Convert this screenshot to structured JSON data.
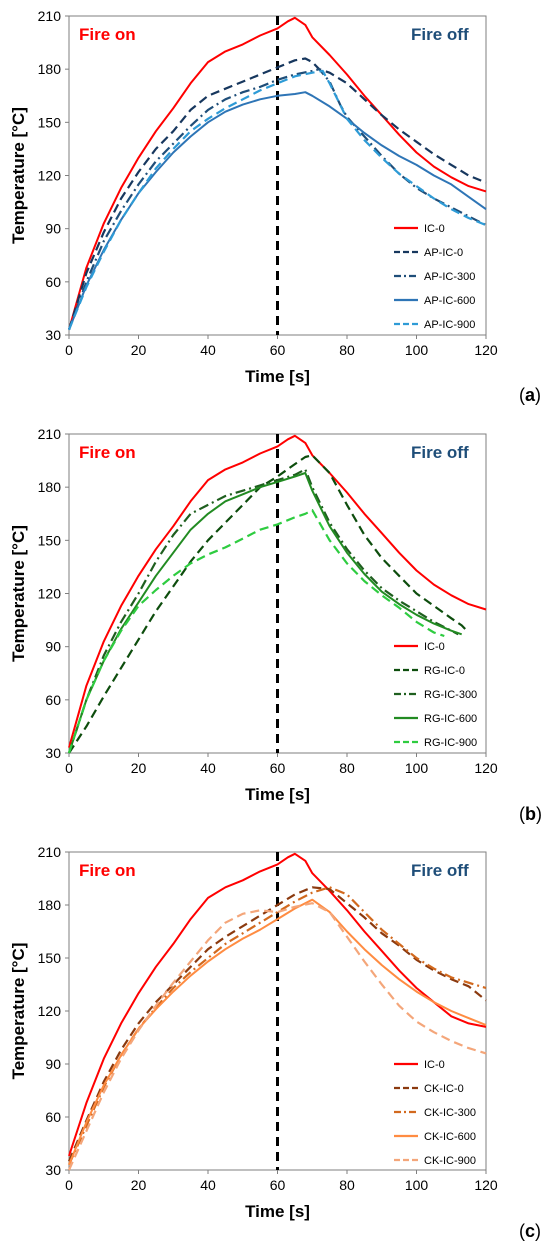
{
  "colors": {
    "ic0": "#ff0000",
    "fire_on": "#ff0000",
    "fire_off": "#1f4e79",
    "ap0": "#17375e",
    "ap300": "#1f4e79",
    "ap600": "#2e75b6",
    "ap900": "#2e9bd6",
    "rg0": "#0d4d0d",
    "rg300": "#1f5f1f",
    "rg600": "#228b22",
    "rg900": "#2ecc40",
    "ck0": "#8b3a0f",
    "ck300": "#d2691e",
    "ck600": "#ff8c42",
    "ck900": "#f4a67a"
  },
  "chart_data": [
    {
      "type": "line",
      "panel_label": "(a)",
      "xlabel": "Time [s]",
      "ylabel": "Temperature [°C]",
      "xlim": [
        0,
        120
      ],
      "ylim": [
        30,
        210
      ],
      "xticks": [
        0,
        20,
        40,
        60,
        80,
        100,
        120
      ],
      "yticks": [
        30,
        60,
        90,
        120,
        150,
        180,
        210
      ],
      "annotations": {
        "left": "Fire on",
        "right": "Fire off",
        "vline_x": 60
      },
      "legend_position": "lower-right",
      "series": [
        {
          "name": "IC-0",
          "color_key": "ic0",
          "dash": "solid",
          "x": [
            0,
            5,
            10,
            15,
            20,
            25,
            30,
            35,
            40,
            45,
            50,
            55,
            60,
            63,
            65,
            68,
            70,
            75,
            80,
            85,
            90,
            95,
            100,
            105,
            110,
            115,
            120
          ],
          "y": [
            33,
            68,
            93,
            113,
            130,
            145,
            158,
            172,
            184,
            190,
            194,
            199,
            203,
            207,
            209,
            205,
            198,
            188,
            177,
            165,
            154,
            143,
            133,
            125,
            119,
            114,
            111
          ]
        },
        {
          "name": "AP-IC-0",
          "color_key": "ap0",
          "dash": "dash",
          "x": [
            0,
            5,
            10,
            15,
            20,
            25,
            30,
            35,
            40,
            45,
            50,
            55,
            60,
            65,
            68,
            70,
            72,
            75,
            80,
            85,
            90,
            95,
            100,
            105,
            110,
            115,
            120
          ],
          "y": [
            33,
            65,
            88,
            107,
            122,
            135,
            145,
            157,
            165,
            169,
            173,
            177,
            181,
            185,
            186,
            184,
            180,
            178,
            172,
            163,
            154,
            146,
            139,
            132,
            126,
            120,
            116
          ]
        },
        {
          "name": "AP-IC-300",
          "color_key": "ap300",
          "dash": "dashdot",
          "x": [
            0,
            5,
            10,
            15,
            20,
            25,
            30,
            35,
            40,
            45,
            50,
            55,
            60,
            65,
            70,
            72,
            75,
            78,
            80,
            85,
            90,
            95,
            100,
            105,
            110,
            115,
            120
          ],
          "y": [
            33,
            60,
            83,
            100,
            115,
            128,
            138,
            148,
            157,
            163,
            167,
            170,
            174,
            177,
            179,
            180,
            173,
            160,
            153,
            142,
            131,
            121,
            113,
            107,
            102,
            97,
            92
          ]
        },
        {
          "name": "AP-IC-600",
          "color_key": "ap600",
          "dash": "solid",
          "x": [
            0,
            5,
            10,
            15,
            20,
            25,
            30,
            35,
            40,
            45,
            50,
            55,
            60,
            65,
            68,
            70,
            75,
            80,
            85,
            90,
            95,
            100,
            105,
            110,
            115,
            120
          ],
          "y": [
            33,
            58,
            78,
            95,
            110,
            122,
            133,
            142,
            150,
            156,
            160,
            163,
            165,
            166,
            167,
            165,
            159,
            152,
            144,
            137,
            131,
            126,
            120,
            115,
            108,
            101
          ]
        },
        {
          "name": "AP-IC-900",
          "color_key": "ap900",
          "dash": "dash",
          "x": [
            0,
            5,
            10,
            15,
            20,
            25,
            30,
            35,
            40,
            45,
            50,
            55,
            60,
            65,
            70,
            73,
            75,
            78,
            80,
            85,
            90,
            95,
            100,
            105,
            110,
            115,
            120
          ],
          "y": [
            33,
            57,
            77,
            95,
            110,
            124,
            135,
            145,
            152,
            158,
            163,
            168,
            172,
            176,
            178,
            179,
            172,
            160,
            152,
            140,
            130,
            121,
            114,
            107,
            101,
            96,
            92
          ]
        }
      ]
    },
    {
      "type": "line",
      "panel_label": "(b)",
      "xlabel": "Time [s]",
      "ylabel": "Temperature [°C]",
      "xlim": [
        0,
        120
      ],
      "ylim": [
        30,
        210
      ],
      "xticks": [
        0,
        20,
        40,
        60,
        80,
        100,
        120
      ],
      "yticks": [
        30,
        60,
        90,
        120,
        150,
        180,
        210
      ],
      "annotations": {
        "left": "Fire on",
        "right": "Fire off",
        "vline_x": 60
      },
      "legend_position": "lower-right",
      "series": [
        {
          "name": "IC-0",
          "color_key": "ic0",
          "dash": "solid",
          "x": [
            0,
            5,
            10,
            15,
            20,
            25,
            30,
            35,
            40,
            45,
            50,
            55,
            60,
            63,
            65,
            68,
            70,
            75,
            80,
            85,
            90,
            95,
            100,
            105,
            110,
            115,
            120
          ],
          "y": [
            33,
            68,
            93,
            113,
            130,
            145,
            158,
            172,
            184,
            190,
            194,
            199,
            203,
            207,
            209,
            205,
            198,
            188,
            177,
            165,
            154,
            143,
            133,
            125,
            119,
            114,
            111
          ]
        },
        {
          "name": "RG-IC-0",
          "color_key": "rg0",
          "dash": "dash",
          "x": [
            0,
            5,
            10,
            15,
            20,
            25,
            30,
            35,
            40,
            45,
            50,
            55,
            60,
            65,
            68,
            70,
            75,
            80,
            85,
            90,
            95,
            100,
            105,
            110,
            113,
            115
          ],
          "y": [
            30,
            45,
            62,
            78,
            94,
            110,
            124,
            138,
            150,
            160,
            170,
            180,
            186,
            193,
            197,
            198,
            188,
            170,
            153,
            140,
            130,
            120,
            113,
            106,
            102,
            98
          ]
        },
        {
          "name": "RG-IC-300",
          "color_key": "rg300",
          "dash": "dashdot",
          "x": [
            0,
            5,
            10,
            15,
            20,
            25,
            30,
            35,
            40,
            45,
            50,
            55,
            60,
            65,
            68,
            70,
            75,
            80,
            85,
            90,
            95,
            100,
            105,
            110,
            112
          ],
          "y": [
            30,
            60,
            85,
            104,
            120,
            138,
            153,
            165,
            170,
            175,
            178,
            181,
            184,
            187,
            190,
            180,
            160,
            145,
            133,
            123,
            116,
            110,
            104,
            99,
            97
          ]
        },
        {
          "name": "RG-IC-600",
          "color_key": "rg600",
          "dash": "solid",
          "x": [
            0,
            5,
            10,
            15,
            20,
            25,
            30,
            35,
            40,
            45,
            50,
            55,
            60,
            65,
            68,
            70,
            75,
            80,
            85,
            90,
            95,
            100,
            105,
            110,
            113
          ],
          "y": [
            30,
            60,
            82,
            100,
            115,
            130,
            143,
            156,
            165,
            172,
            176,
            180,
            183,
            186,
            188,
            178,
            158,
            143,
            131,
            121,
            114,
            108,
            103,
            99,
            97
          ]
        },
        {
          "name": "RG-IC-900",
          "color_key": "rg900",
          "dash": "dash",
          "x": [
            0,
            5,
            10,
            15,
            20,
            25,
            30,
            35,
            40,
            45,
            50,
            55,
            60,
            65,
            68,
            70,
            75,
            80,
            85,
            90,
            95,
            100,
            105,
            108
          ],
          "y": [
            30,
            60,
            82,
            99,
            113,
            122,
            130,
            137,
            142,
            146,
            151,
            156,
            159,
            163,
            165,
            167,
            150,
            137,
            127,
            119,
            112,
            104,
            98,
            96
          ]
        }
      ]
    },
    {
      "type": "line",
      "panel_label": "(c)",
      "xlabel": "Time [s]",
      "ylabel": "Temperature [°C]",
      "xlim": [
        0,
        120
      ],
      "ylim": [
        30,
        210
      ],
      "xticks": [
        0,
        20,
        40,
        60,
        80,
        100,
        120
      ],
      "yticks": [
        30,
        60,
        90,
        120,
        150,
        180,
        210
      ],
      "annotations": {
        "left": "Fire on",
        "right": "Fire off",
        "vline_x": 60
      },
      "legend_position": "lower-right",
      "series": [
        {
          "name": "IC-0",
          "color_key": "ic0",
          "dash": "solid",
          "x": [
            0,
            5,
            10,
            15,
            20,
            25,
            30,
            35,
            40,
            45,
            50,
            55,
            60,
            63,
            65,
            68,
            70,
            75,
            80,
            85,
            90,
            95,
            100,
            105,
            110,
            115,
            120
          ],
          "y": [
            38,
            68,
            93,
            113,
            130,
            145,
            158,
            172,
            184,
            190,
            194,
            199,
            203,
            207,
            209,
            205,
            198,
            188,
            177,
            165,
            154,
            143,
            133,
            125,
            117,
            113,
            111
          ]
        },
        {
          "name": "CK-IC-0",
          "color_key": "ck0",
          "dash": "dash",
          "x": [
            0,
            5,
            10,
            15,
            20,
            25,
            30,
            35,
            40,
            45,
            50,
            55,
            60,
            65,
            70,
            75,
            80,
            85,
            90,
            95,
            100,
            105,
            110,
            115,
            120
          ],
          "y": [
            35,
            58,
            80,
            98,
            113,
            125,
            135,
            145,
            155,
            162,
            168,
            174,
            180,
            186,
            190,
            189,
            181,
            173,
            164,
            157,
            149,
            143,
            138,
            134,
            126
          ]
        },
        {
          "name": "CK-IC-300",
          "color_key": "ck300",
          "dash": "dashdot",
          "x": [
            0,
            5,
            10,
            15,
            20,
            25,
            30,
            35,
            40,
            45,
            50,
            55,
            60,
            65,
            70,
            75,
            80,
            85,
            90,
            95,
            100,
            105,
            110,
            115,
            120
          ],
          "y": [
            33,
            55,
            77,
            95,
            110,
            122,
            133,
            142,
            150,
            158,
            164,
            170,
            176,
            182,
            187,
            190,
            186,
            176,
            166,
            158,
            150,
            144,
            139,
            136,
            133
          ]
        },
        {
          "name": "CK-IC-600",
          "color_key": "ck600",
          "dash": "solid",
          "x": [
            0,
            5,
            10,
            15,
            20,
            25,
            30,
            35,
            40,
            45,
            50,
            55,
            60,
            65,
            70,
            75,
            80,
            85,
            90,
            95,
            100,
            105,
            110,
            115,
            120
          ],
          "y": [
            33,
            57,
            78,
            95,
            110,
            121,
            131,
            140,
            148,
            155,
            161,
            166,
            172,
            178,
            183,
            176,
            165,
            155,
            146,
            138,
            131,
            125,
            120,
            116,
            112
          ]
        },
        {
          "name": "CK-IC-900",
          "color_key": "ck900",
          "dash": "dash",
          "x": [
            0,
            5,
            10,
            15,
            20,
            25,
            30,
            35,
            40,
            45,
            50,
            55,
            60,
            65,
            70,
            75,
            80,
            85,
            90,
            95,
            100,
            105,
            110,
            115,
            120
          ],
          "y": [
            30,
            52,
            74,
            93,
            109,
            123,
            136,
            148,
            160,
            170,
            175,
            177,
            176,
            179,
            181,
            176,
            162,
            148,
            135,
            123,
            114,
            108,
            103,
            99,
            96
          ]
        }
      ]
    }
  ]
}
